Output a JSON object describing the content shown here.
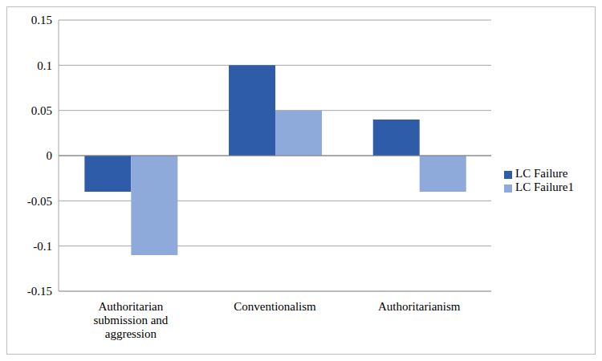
{
  "chart_data": {
    "type": "bar",
    "categories": [
      "Authoritarian submission and aggression",
      "Conventionalism",
      "Authoritarianism"
    ],
    "series": [
      {
        "name": "LC Failure",
        "color": "#2f5ca8",
        "values": [
          -0.04,
          0.1,
          0.04
        ]
      },
      {
        "name": "LC Failure1",
        "color": "#8eaadb",
        "values": [
          -0.11,
          0.05,
          -0.04
        ]
      }
    ],
    "ylim": [
      -0.15,
      0.15
    ],
    "yticks": [
      -0.15,
      -0.1,
      -0.05,
      0,
      0.05,
      0.1,
      0.15
    ],
    "grid": true,
    "legend": "right"
  }
}
